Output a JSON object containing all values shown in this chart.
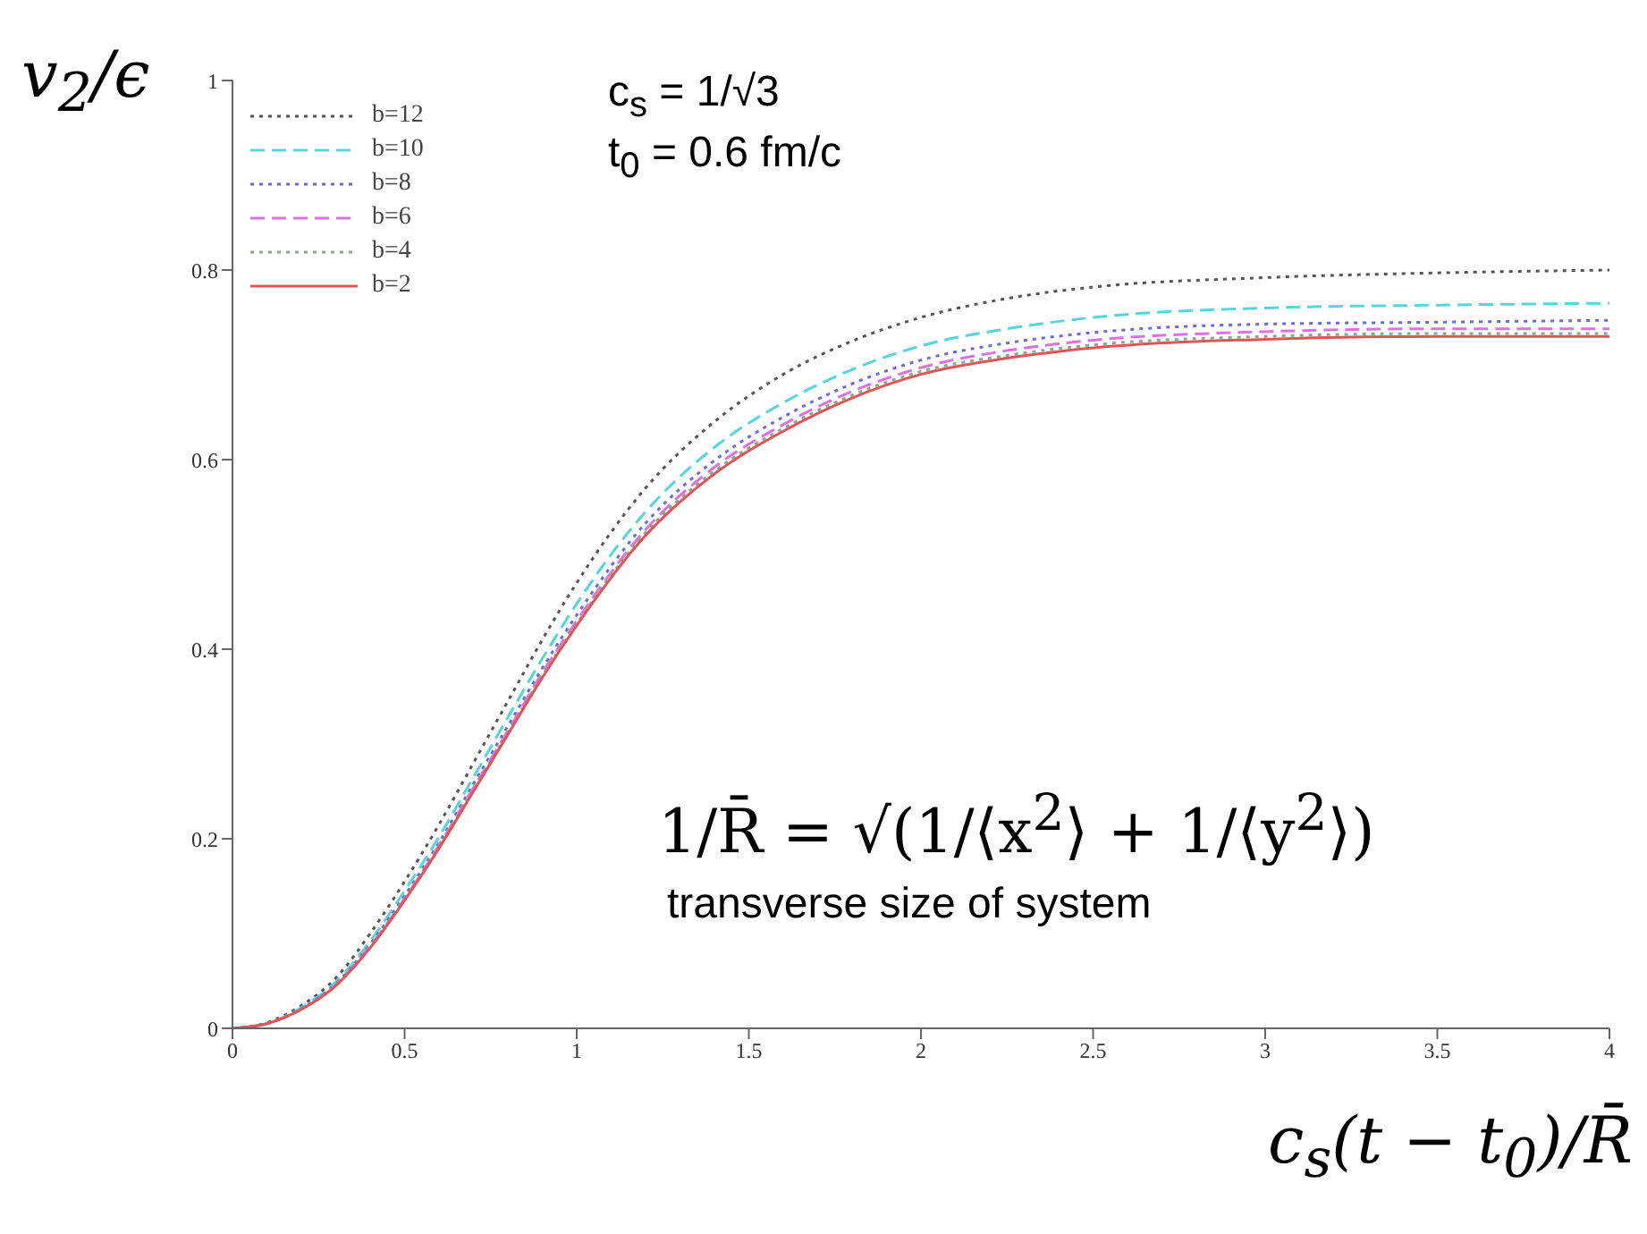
{
  "chart_data": {
    "type": "line",
    "xlabel": "c$_{s}$(t − t$_{0}$)/R̄",
    "ylabel": "v$_{2}$/ϵ",
    "x": [
      0,
      0.1,
      0.2,
      0.3,
      0.4,
      0.5,
      0.6,
      0.7,
      0.8,
      0.9,
      1.0,
      1.2,
      1.4,
      1.6,
      1.8,
      2.0,
      2.25,
      2.5,
      3,
      3.5,
      4
    ],
    "series": [
      {
        "name": "b=12",
        "color": "#555555",
        "line_style": "dotted",
        "values": [
          0,
          0.006,
          0.024,
          0.053,
          0.1,
          0.155,
          0.215,
          0.28,
          0.345,
          0.41,
          0.47,
          0.57,
          0.64,
          0.69,
          0.725,
          0.75,
          0.77,
          0.782,
          0.792,
          0.797,
          0.8
        ]
      },
      {
        "name": "b=10",
        "color": "#55d5dd",
        "line_style": "dashed",
        "values": [
          0,
          0.005,
          0.022,
          0.049,
          0.092,
          0.145,
          0.202,
          0.265,
          0.328,
          0.39,
          0.448,
          0.545,
          0.613,
          0.66,
          0.695,
          0.72,
          0.738,
          0.75,
          0.76,
          0.763,
          0.765
        ]
      },
      {
        "name": "b=8",
        "color": "#6a6ad8",
        "line_style": "dotted",
        "values": [
          0,
          0.005,
          0.021,
          0.047,
          0.089,
          0.14,
          0.196,
          0.258,
          0.319,
          0.38,
          0.436,
          0.533,
          0.599,
          0.645,
          0.68,
          0.705,
          0.723,
          0.734,
          0.743,
          0.745,
          0.747
        ]
      },
      {
        "name": "b=6",
        "color": "#e070e0",
        "line_style": "dashed",
        "values": [
          0,
          0.005,
          0.02,
          0.046,
          0.087,
          0.137,
          0.193,
          0.254,
          0.314,
          0.375,
          0.43,
          0.526,
          0.592,
          0.637,
          0.672,
          0.697,
          0.715,
          0.726,
          0.735,
          0.738,
          0.738
        ]
      },
      {
        "name": "b=4",
        "color": "#88aa88",
        "line_style": "dotted",
        "values": [
          0,
          0.005,
          0.02,
          0.045,
          0.086,
          0.136,
          0.191,
          0.252,
          0.312,
          0.372,
          0.427,
          0.523,
          0.588,
          0.633,
          0.668,
          0.693,
          0.71,
          0.721,
          0.73,
          0.733,
          0.733
        ]
      },
      {
        "name": "b=2",
        "color": "#dd5555",
        "line_style": "solid",
        "values": [
          0,
          0.005,
          0.02,
          0.045,
          0.085,
          0.135,
          0.19,
          0.25,
          0.31,
          0.37,
          0.425,
          0.52,
          0.585,
          0.63,
          0.665,
          0.69,
          0.707,
          0.718,
          0.727,
          0.73,
          0.73
        ]
      }
    ],
    "xlim": [
      0,
      4
    ],
    "xticks": [
      0,
      0.5,
      1,
      1.5,
      2,
      2.5,
      3,
      3.5,
      4
    ],
    "ylim": [
      0,
      1
    ],
    "yticks": [
      0,
      0.2,
      0.4,
      0.6,
      0.8,
      1
    ],
    "grid": false,
    "legend": "top left",
    "annotations": [
      "c$_{s}$ = 1/√3",
      "t$_{0}$ = 0.6 fm/c",
      "1/R̄ = √(1/⟨x$^{2}$⟩ + 1/⟨y$^{2}$⟩)",
      "transverse size of system"
    ]
  }
}
